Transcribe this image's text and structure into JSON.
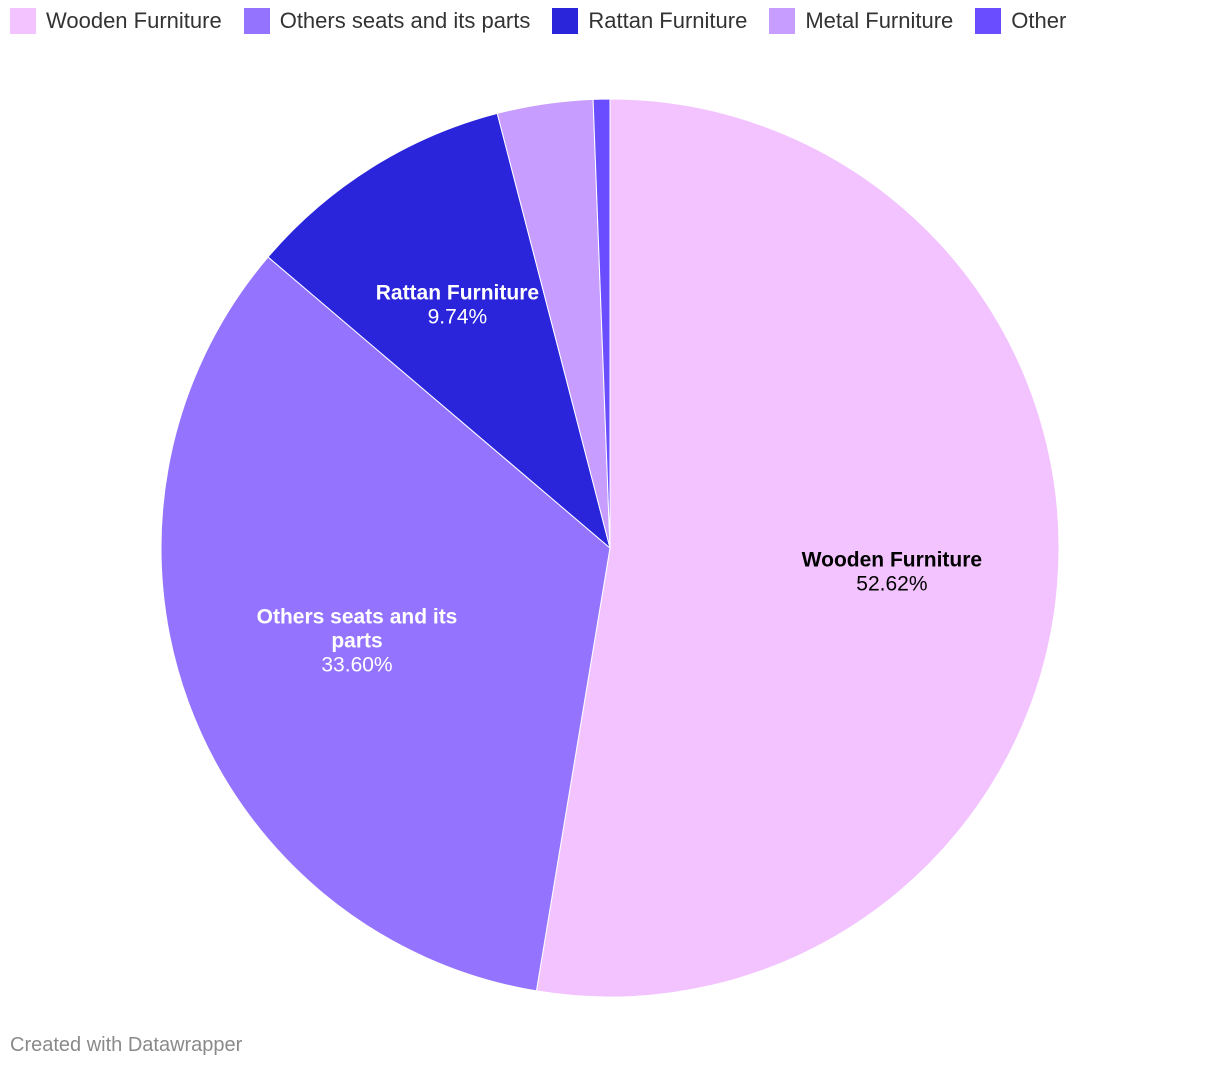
{
  "chart_data": {
    "type": "pie",
    "slices": [
      {
        "name": "Wooden Furniture",
        "value": 52.62,
        "color": "#f2c3ff",
        "label_color": "#000000",
        "display": "52.62%",
        "label_lines": [
          "Wooden Furniture"
        ]
      },
      {
        "name": "Others seats and its parts",
        "value": 33.6,
        "color": "#9473ff",
        "label_color": "#ffffff",
        "display": "33.60%",
        "label_lines": [
          "Others seats and its",
          "parts"
        ]
      },
      {
        "name": "Rattan Furniture",
        "value": 9.74,
        "color": "#2a24db",
        "label_color": "#ffffff",
        "display": "9.74%",
        "label_lines": [
          "Rattan Furniture"
        ]
      },
      {
        "name": "Metal Furniture",
        "value": 3.44,
        "color": "#c79dff",
        "label_color": null,
        "display": null,
        "label_lines": []
      },
      {
        "name": "Other",
        "value": 0.6,
        "color": "#6a4dff",
        "label_color": null,
        "display": null,
        "label_lines": []
      }
    ],
    "start": "top",
    "direction": "clockwise",
    "legend_placement": "top-left"
  },
  "footer": {
    "text": "Created with Datawrapper"
  }
}
